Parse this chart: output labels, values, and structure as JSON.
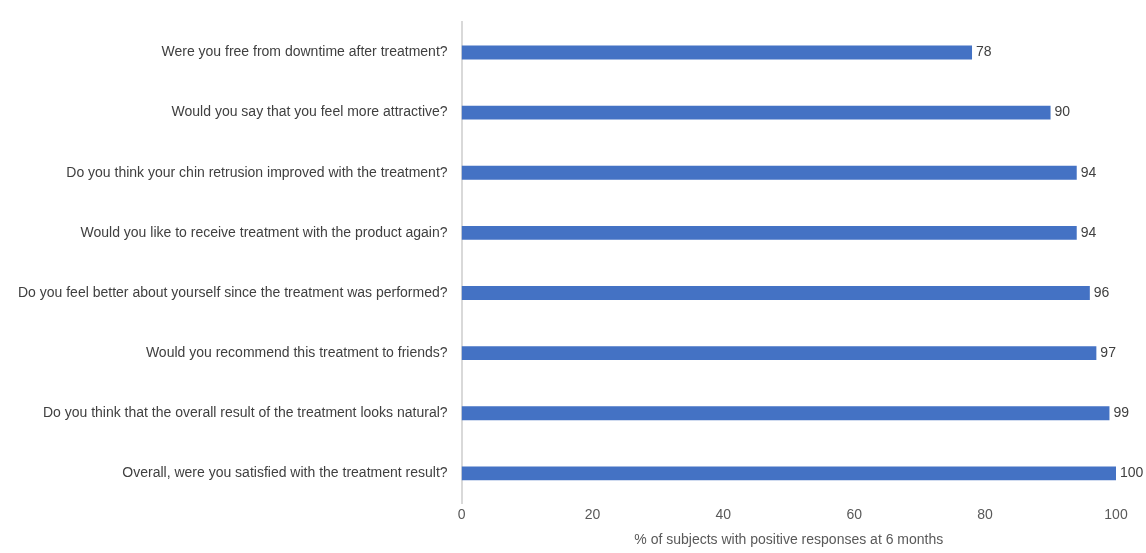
{
  "chart_data": {
    "type": "bar",
    "orientation": "horizontal",
    "xlabel": "% of subjects with positive responses at 6 months",
    "categories": [
      "Were you free from downtime after treatment?",
      "Would you say that you feel more attractive?",
      "Do you think your chin retrusion improved with the treatment?",
      "Would you like to receive treatment with the product again?",
      "Do you feel better about yourself since the treatment was performed?",
      "Would you recommend this treatment to friends?",
      "Do you think that the overall result of the treatment looks natural?",
      "Overall, were you satisfied with the treatment result?"
    ],
    "values": [
      78,
      90,
      94,
      94,
      96,
      97,
      99,
      100
    ],
    "color": "#4472c4",
    "xlim": [
      0,
      100
    ],
    "xticks": [
      0,
      20,
      40,
      60,
      80,
      100
    ],
    "grid": false,
    "legend": false,
    "data_labels": true
  }
}
